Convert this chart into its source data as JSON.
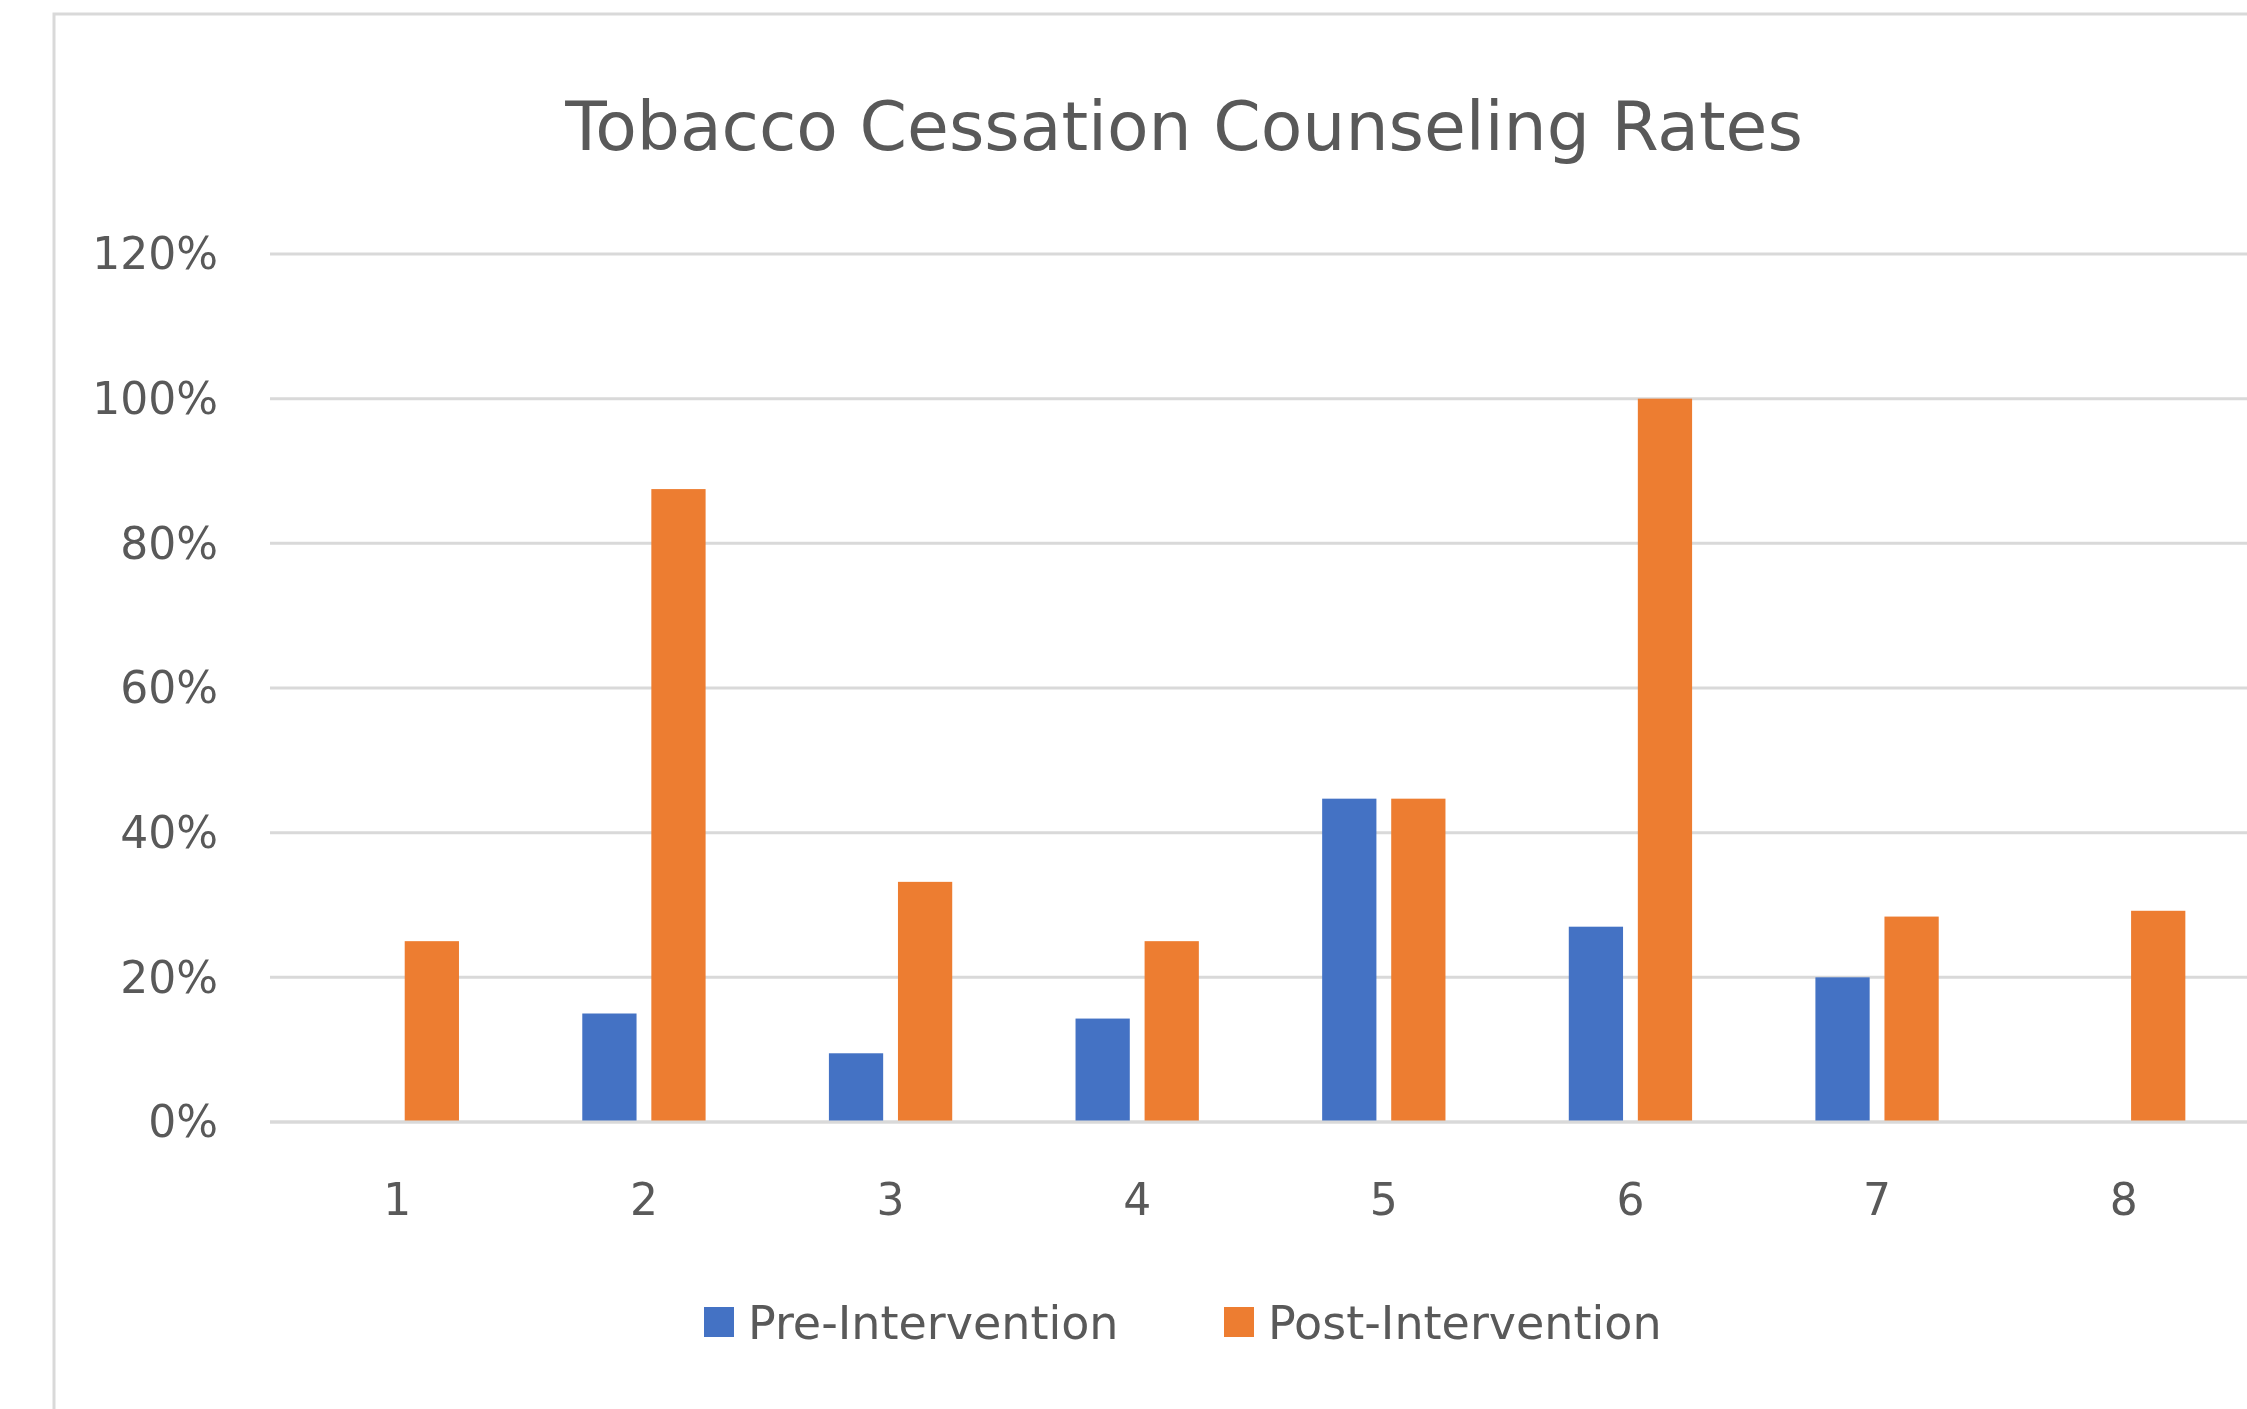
{
  "chart_data": {
    "type": "bar",
    "title": "Tobacco Cessation Counseling Rates",
    "categories": [
      "1",
      "2",
      "3",
      "4",
      "5",
      "6",
      "7",
      "8"
    ],
    "series": [
      {
        "name": "Pre-Intervention",
        "color": "#4472c4",
        "values": [
          0,
          15,
          9.5,
          14.3,
          44.7,
          27,
          20,
          0
        ]
      },
      {
        "name": "Post-Intervention",
        "color": "#ed7d31",
        "values": [
          25,
          87.5,
          33.2,
          25,
          44.7,
          100,
          28.4,
          29.2
        ]
      }
    ],
    "ylim": [
      0,
      120
    ],
    "yticks": [
      {
        "value": 0,
        "label": "0%"
      },
      {
        "value": 20,
        "label": "20%"
      },
      {
        "value": 40,
        "label": "40%"
      },
      {
        "value": 60,
        "label": "60%"
      },
      {
        "value": 80,
        "label": "80%"
      },
      {
        "value": 100,
        "label": "100%"
      },
      {
        "value": 120,
        "label": "120%"
      }
    ],
    "grid": "y",
    "legend": "bottom"
  }
}
